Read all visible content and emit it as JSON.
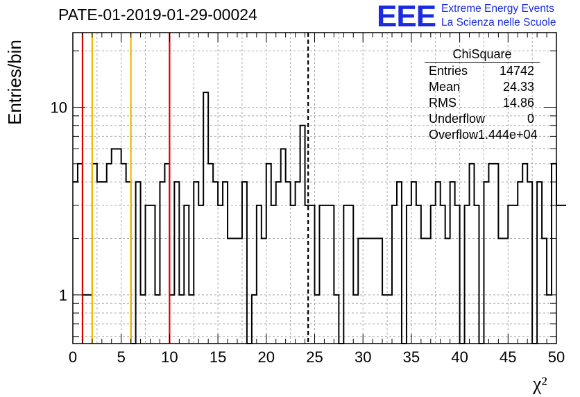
{
  "title": "PATE-01-2019-01-29-00024",
  "logo": {
    "mark": "EEE",
    "line1": "Extreme Energy Events",
    "line2": "La Scienza nelle Scuole",
    "color": "#1a2be0"
  },
  "stats_box": {
    "title": "ChiSquare",
    "rows": [
      {
        "label": "Entries",
        "value": "14742"
      },
      {
        "label": "Mean",
        "value": "24.33"
      },
      {
        "label": "RMS",
        "value": "14.86"
      },
      {
        "label": "Underflow",
        "value": "0"
      },
      {
        "label": "Overflow",
        "value": "1.444e+04"
      }
    ]
  },
  "chart_data": {
    "type": "histogram",
    "title": "PATE-01-2019-01-29-00024",
    "xlabel": "χ²",
    "ylabel": "Entries/bin",
    "xlim": [
      0,
      50
    ],
    "ylim": [
      0.55,
      25
    ],
    "y_scale": "log",
    "grid": true,
    "bin_width": 0.5,
    "x_ticks": [
      "0",
      "5",
      "10",
      "15",
      "20",
      "25",
      "30",
      "35",
      "40",
      "45",
      "50"
    ],
    "y_ticks": [
      "1",
      "10"
    ],
    "bin_counts": [
      4,
      5,
      1,
      1,
      5,
      4,
      4,
      5,
      6,
      6,
      5,
      4,
      0,
      4,
      1,
      3,
      3,
      1,
      4,
      5,
      1,
      4,
      1,
      3,
      1,
      4,
      3,
      12,
      5,
      4,
      3,
      4,
      2,
      2,
      2,
      4,
      0,
      1,
      3,
      2,
      5,
      3,
      4,
      6,
      4,
      3,
      4,
      8,
      3,
      3,
      1,
      3,
      3,
      3,
      1,
      0,
      3,
      3,
      1,
      2,
      2,
      2,
      2,
      2,
      1,
      1,
      3,
      4,
      0,
      3,
      4,
      3,
      2,
      2,
      3,
      4,
      3,
      2,
      4,
      3,
      0,
      3,
      5,
      3,
      0,
      4,
      5,
      5,
      2,
      2,
      3,
      3,
      4,
      5,
      4,
      0,
      4,
      2,
      1,
      5,
      3,
      3
    ],
    "vertical_lines": [
      {
        "x": 1.0,
        "color": "#dd0000",
        "style": "solid"
      },
      {
        "x": 2.0,
        "color": "#f2b800",
        "style": "solid"
      },
      {
        "x": 6.0,
        "color": "#f2b800",
        "style": "solid"
      },
      {
        "x": 10.0,
        "color": "#dd0000",
        "style": "solid"
      },
      {
        "x": 24.33,
        "color": "#000000",
        "style": "dashed"
      }
    ]
  }
}
